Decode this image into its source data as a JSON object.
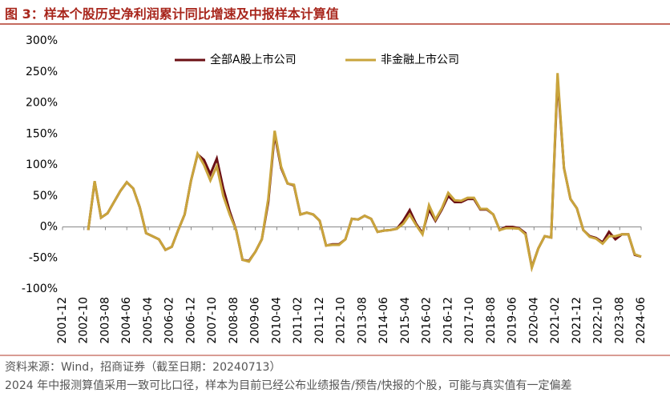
{
  "chart_data": {
    "type": "line",
    "title": "图 3：样本个股历史净利润累计同比增速及中报样本计算值",
    "x": [
      "2002-12",
      "2003-03",
      "2003-06",
      "2003-09",
      "2003-12",
      "2004-03",
      "2004-06",
      "2004-09",
      "2004-12",
      "2005-03",
      "2005-06",
      "2005-09",
      "2005-12",
      "2006-03",
      "2006-06",
      "2006-09",
      "2006-12",
      "2007-03",
      "2007-06",
      "2007-09",
      "2007-12",
      "2008-03",
      "2008-06",
      "2008-09",
      "2008-12",
      "2009-03",
      "2009-06",
      "2009-09",
      "2009-12",
      "2010-03",
      "2010-06",
      "2010-09",
      "2010-12",
      "2011-03",
      "2011-06",
      "2011-09",
      "2011-12",
      "2012-03",
      "2012-06",
      "2012-09",
      "2012-12",
      "2013-03",
      "2013-06",
      "2013-09",
      "2013-12",
      "2014-03",
      "2014-06",
      "2014-09",
      "2014-12",
      "2015-03",
      "2015-06",
      "2015-09",
      "2015-12",
      "2016-03",
      "2016-06",
      "2016-09",
      "2016-12",
      "2017-03",
      "2017-06",
      "2017-09",
      "2017-12",
      "2018-03",
      "2018-06",
      "2018-09",
      "2018-12",
      "2019-03",
      "2019-06",
      "2019-09",
      "2019-12",
      "2020-03",
      "2020-06",
      "2020-09",
      "2020-12",
      "2021-03",
      "2021-06",
      "2021-09",
      "2021-12",
      "2022-03",
      "2022-06",
      "2022-09",
      "2022-12",
      "2023-03",
      "2023-06",
      "2023-09",
      "2023-12",
      "2024-03",
      "2024-06"
    ],
    "series": [
      {
        "name": "全部A股上市公司",
        "color": "#6b0f14",
        "values": [
          -5,
          73,
          15,
          22,
          40,
          58,
          72,
          62,
          32,
          -10,
          -15,
          -20,
          -37,
          -32,
          -5,
          20,
          75,
          117,
          108,
          85,
          110,
          62,
          25,
          -5,
          -53,
          -55,
          -40,
          -20,
          40,
          150,
          95,
          70,
          67,
          20,
          23,
          20,
          10,
          -30,
          -28,
          -28,
          -20,
          13,
          12,
          18,
          13,
          -8,
          -6,
          -5,
          -3,
          10,
          27,
          5,
          -10,
          28,
          10,
          28,
          50,
          40,
          40,
          45,
          45,
          28,
          28,
          20,
          -5,
          0,
          0,
          -2,
          -10,
          -65,
          -35,
          -15,
          -17,
          240,
          95,
          45,
          30,
          -5,
          -15,
          -18,
          -25,
          -8,
          -20,
          -12,
          -12,
          -45,
          -48
        ]
      },
      {
        "name": "非金融上市公司",
        "color": "#c9a43c",
        "values": [
          -5,
          74,
          15,
          22,
          40,
          58,
          72,
          62,
          32,
          -10,
          -15,
          -20,
          -37,
          -32,
          -5,
          20,
          75,
          118,
          100,
          75,
          98,
          50,
          20,
          -5,
          -53,
          -56,
          -40,
          -20,
          45,
          155,
          97,
          70,
          68,
          20,
          23,
          20,
          10,
          -30,
          -29,
          -29,
          -20,
          13,
          12,
          18,
          13,
          -8,
          -6,
          -5,
          -3,
          5,
          20,
          3,
          -12,
          35,
          12,
          30,
          55,
          43,
          42,
          47,
          47,
          29,
          29,
          20,
          -5,
          -2,
          -2,
          -3,
          -12,
          -66,
          -35,
          -15,
          -17,
          248,
          95,
          45,
          30,
          -5,
          -16,
          -19,
          -27,
          -15,
          -15,
          -12,
          -12,
          -44,
          -48
        ]
      }
    ],
    "xlim": [
      "2001-12",
      "2024-06"
    ],
    "xticks": [
      "2001-12",
      "2002-10",
      "2003-08",
      "2004-06",
      "2005-04",
      "2006-02",
      "2006-12",
      "2007-10",
      "2008-08",
      "2009-06",
      "2010-04",
      "2011-02",
      "2011-12",
      "2012-10",
      "2013-08",
      "2014-06",
      "2015-04",
      "2016-02",
      "2016-12",
      "2017-10",
      "2018-08",
      "2019-06",
      "2020-04",
      "2021-02",
      "2021-12",
      "2022-10",
      "2023-08",
      "2024-06"
    ],
    "ylim": [
      -100,
      300
    ],
    "yticks": [
      {
        "value": -100,
        "label": "-100%"
      },
      {
        "value": -50,
        "label": "-50%"
      },
      {
        "value": 0,
        "label": "0%"
      },
      {
        "value": 50,
        "label": "50%"
      },
      {
        "value": 100,
        "label": "100%"
      },
      {
        "value": 150,
        "label": "150%"
      },
      {
        "value": 200,
        "label": "200%"
      },
      {
        "value": 250,
        "label": "250%"
      },
      {
        "value": 300,
        "label": "300%"
      }
    ],
    "legend": "top",
    "source": "资料来源：Wind，招商证券（截至日期：20240713）",
    "note": "2024 年中报测算值采用一致可比口径，样本为目前已经公布业绩报告/预告/快报的个股，可能与真实值有一定偏差"
  }
}
